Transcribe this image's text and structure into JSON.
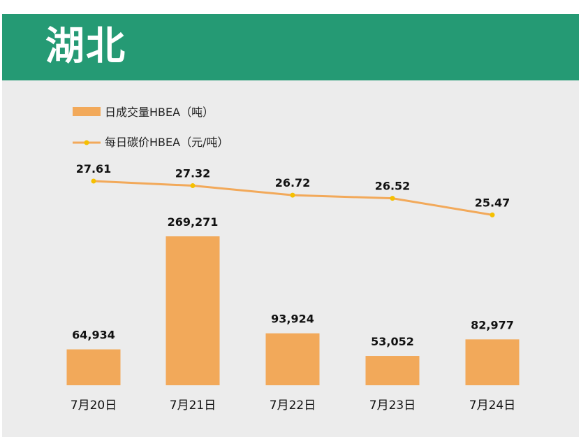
{
  "header": {
    "title": "湖北"
  },
  "colors": {
    "header_bg": "#259a74",
    "bar": "#f2a95a",
    "line": "#f2a95a",
    "marker": "#f5c000",
    "panel_bg": "#ececec"
  },
  "chart_data": {
    "type": "bar+line",
    "categories": [
      "7月20日",
      "7月21日",
      "7月22日",
      "7月23日",
      "7月24日"
    ],
    "series": [
      {
        "name": "日成交量HBEA（吨）",
        "type": "bar",
        "values": [
          64934,
          269271,
          93924,
          53052,
          82977
        ],
        "labels": [
          "64,934",
          "269,271",
          "93,924",
          "53,052",
          "82,977"
        ]
      },
      {
        "name": "每日碳价HBEA（元/吨）",
        "type": "line",
        "values": [
          27.61,
          27.32,
          26.72,
          26.52,
          25.47
        ],
        "labels": [
          "27.61",
          "27.32",
          "26.72",
          "26.52",
          "25.47"
        ]
      }
    ],
    "legend_position": "top-left",
    "grid": false
  }
}
